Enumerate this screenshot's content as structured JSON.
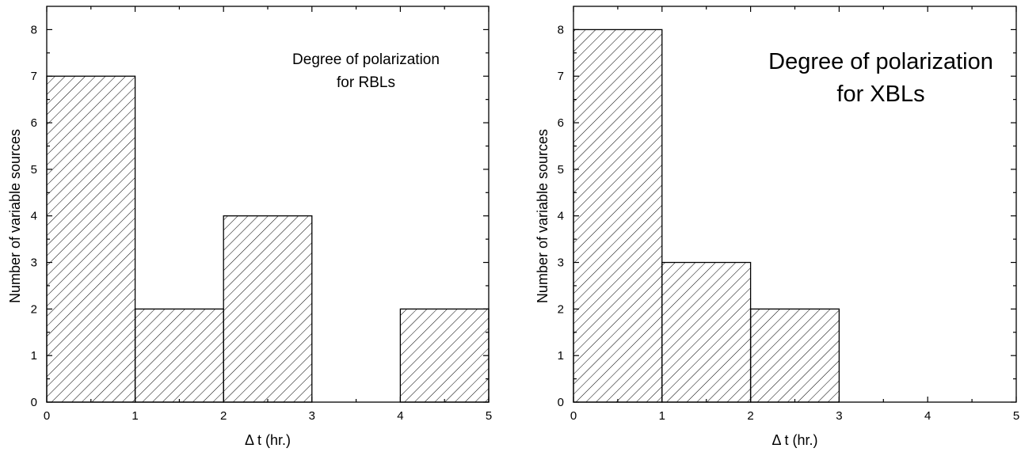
{
  "chart_data": [
    {
      "type": "bar",
      "title_lines": [
        "Degree of polarization",
        "for RBLs"
      ],
      "xlabel": "Δ t (hr.)",
      "ylabel": "Number of variable sources",
      "xlim": [
        0,
        5
      ],
      "ylim": [
        0,
        8.5
      ],
      "xticks": [
        0,
        1,
        2,
        3,
        4,
        5
      ],
      "yticks": [
        0,
        1,
        2,
        3,
        4,
        5,
        6,
        7,
        8
      ],
      "bins": [
        {
          "x0": 0,
          "x1": 1,
          "value": 7
        },
        {
          "x0": 1,
          "x1": 2,
          "value": 2
        },
        {
          "x0": 2,
          "x1": 3,
          "value": 4
        },
        {
          "x0": 3,
          "x1": 4,
          "value": 0
        },
        {
          "x0": 4,
          "x1": 5,
          "value": 2
        }
      ],
      "fill_pattern": "diagonal-hatch",
      "grid": false,
      "legend": "none"
    },
    {
      "type": "bar",
      "title_lines": [
        "Degree of polarization",
        "for XBLs"
      ],
      "xlabel": "Δ t (hr.)",
      "ylabel": "Number of variable sources",
      "xlim": [
        0,
        5
      ],
      "ylim": [
        0,
        8.5
      ],
      "xticks": [
        0,
        1,
        2,
        3,
        4,
        5
      ],
      "yticks": [
        0,
        1,
        2,
        3,
        4,
        5,
        6,
        7,
        8
      ],
      "bins": [
        {
          "x0": 0,
          "x1": 1,
          "value": 8
        },
        {
          "x0": 1,
          "x1": 2,
          "value": 3
        },
        {
          "x0": 2,
          "x1": 3,
          "value": 2
        },
        {
          "x0": 3,
          "x1": 4,
          "value": 0
        },
        {
          "x0": 4,
          "x1": 5,
          "value": 0
        }
      ],
      "fill_pattern": "diagonal-hatch",
      "grid": false,
      "legend": "none"
    }
  ]
}
